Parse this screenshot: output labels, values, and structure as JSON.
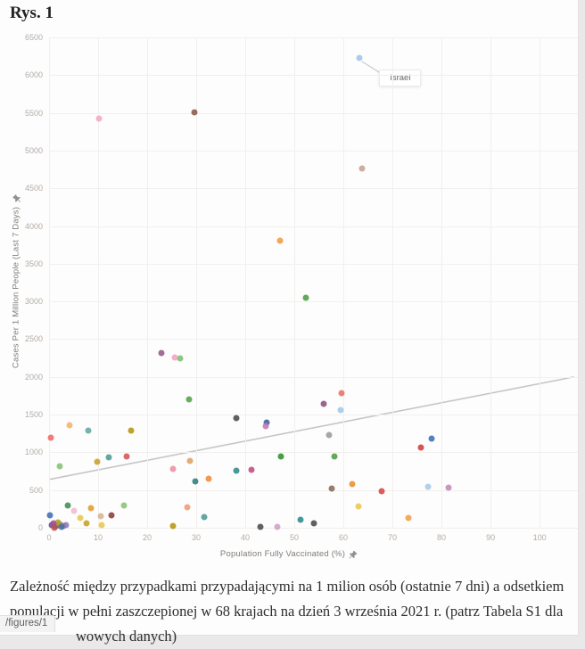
{
  "page": {
    "title": "Rys. 1",
    "status_chip": "/figures/1"
  },
  "caption": {
    "line1": "Zależność między przypadkami przypadającymi na 1 milion osób (ostatnie 7 dni) a odsetkiem",
    "line2": "populacji w pełni zaszczepionej w 68 krajach na dzień 3 września 2021 r. (patrz Tabela S1 dla",
    "line3": "wowych danych)"
  },
  "chart_data": {
    "type": "scatter",
    "title": "",
    "xlabel": "Population Fully Vaccinated (%)",
    "ylabel": "Cases Per 1 Million People (Last 7 Days)",
    "xlim": [
      0,
      107.8
    ],
    "ylim": [
      0,
      6500
    ],
    "x_ticks": [
      0,
      10,
      20,
      30,
      40,
      50,
      60,
      70,
      80,
      90,
      100
    ],
    "y_ticks": [
      0,
      500,
      1000,
      1500,
      2000,
      2500,
      3000,
      3500,
      4000,
      4500,
      5000,
      5500,
      6000,
      6500
    ],
    "grid": true,
    "trendline": {
      "x1": 0,
      "y1": 640,
      "x2": 107,
      "y2": 2000,
      "color": "#c6c6c6"
    },
    "annotation": {
      "label": "Israel",
      "point": {
        "x": 63.2,
        "y": 6230
      },
      "box": {
        "x": 67.3,
        "y": 6080
      }
    },
    "points": [
      {
        "x": 63.2,
        "y": 6230,
        "c": "#9fc5e8",
        "name": "Israel"
      },
      {
        "x": 10.2,
        "y": 5420,
        "c": "#f1a7c7"
      },
      {
        "x": 29.6,
        "y": 5510,
        "c": "#8a5a44"
      },
      {
        "x": 63.8,
        "y": 4760,
        "c": "#c9a092"
      },
      {
        "x": 47.0,
        "y": 3800,
        "c": "#f09b42"
      },
      {
        "x": 52.4,
        "y": 3050,
        "c": "#4c9e44"
      },
      {
        "x": 22.9,
        "y": 2320,
        "c": "#955a87"
      },
      {
        "x": 25.7,
        "y": 2260,
        "c": "#f2a3c0"
      },
      {
        "x": 26.8,
        "y": 2250,
        "c": "#7cc06c"
      },
      {
        "x": 59.6,
        "y": 1790,
        "c": "#ec7063"
      },
      {
        "x": 56.0,
        "y": 1640,
        "c": "#8e4f80"
      },
      {
        "x": 59.4,
        "y": 1565,
        "c": "#9ec9ea"
      },
      {
        "x": 28.5,
        "y": 1700,
        "c": "#56a14a"
      },
      {
        "x": 38.2,
        "y": 1450,
        "c": "#4a4a4a"
      },
      {
        "x": 44.3,
        "y": 1400,
        "c": "#3e5f9e"
      },
      {
        "x": 44.1,
        "y": 1345,
        "c": "#c07ab0"
      },
      {
        "x": 4.2,
        "y": 1360,
        "c": "#f5b26b"
      },
      {
        "x": 0.4,
        "y": 1190,
        "c": "#ec6b66"
      },
      {
        "x": 8.0,
        "y": 1290,
        "c": "#62aaa2"
      },
      {
        "x": 16.7,
        "y": 1285,
        "c": "#b5950f"
      },
      {
        "x": 57.0,
        "y": 1230,
        "c": "#9b9b9b"
      },
      {
        "x": 78.0,
        "y": 1180,
        "c": "#3f6db4"
      },
      {
        "x": 75.8,
        "y": 1065,
        "c": "#d13c3c"
      },
      {
        "x": 12.2,
        "y": 935,
        "c": "#4f9a94"
      },
      {
        "x": 15.8,
        "y": 945,
        "c": "#d95252"
      },
      {
        "x": 28.7,
        "y": 890,
        "c": "#dda267"
      },
      {
        "x": 9.8,
        "y": 870,
        "c": "#c7a02a"
      },
      {
        "x": 2.2,
        "y": 815,
        "c": "#83c178"
      },
      {
        "x": 47.3,
        "y": 945,
        "c": "#2f8f2f"
      },
      {
        "x": 58.2,
        "y": 950,
        "c": "#4c9e44"
      },
      {
        "x": 25.3,
        "y": 780,
        "c": "#ea8fa0"
      },
      {
        "x": 38.2,
        "y": 760,
        "c": "#2e8b8b"
      },
      {
        "x": 41.3,
        "y": 770,
        "c": "#c24a7e"
      },
      {
        "x": 77.2,
        "y": 545,
        "c": "#a5cae8"
      },
      {
        "x": 81.4,
        "y": 535,
        "c": "#c289ba"
      },
      {
        "x": 57.6,
        "y": 520,
        "c": "#8a6a5a"
      },
      {
        "x": 61.8,
        "y": 575,
        "c": "#e8912d"
      },
      {
        "x": 67.8,
        "y": 485,
        "c": "#d94444"
      },
      {
        "x": 63.1,
        "y": 285,
        "c": "#e6c84d"
      },
      {
        "x": 73.3,
        "y": 135,
        "c": "#f0a144"
      },
      {
        "x": 29.8,
        "y": 620,
        "c": "#2e7d7d"
      },
      {
        "x": 32.5,
        "y": 645,
        "c": "#ef8a3a"
      },
      {
        "x": 3.8,
        "y": 295,
        "c": "#3f8e50"
      },
      {
        "x": 0.2,
        "y": 170,
        "c": "#3f6db4"
      },
      {
        "x": 5.1,
        "y": 230,
        "c": "#f3bacd"
      },
      {
        "x": 8.5,
        "y": 265,
        "c": "#e09d2c"
      },
      {
        "x": 6.4,
        "y": 125,
        "c": "#e6c84d"
      },
      {
        "x": 7.6,
        "y": 55,
        "c": "#c7a02a"
      },
      {
        "x": 10.5,
        "y": 150,
        "c": "#d8b48c"
      },
      {
        "x": 12.7,
        "y": 160,
        "c": "#8e3b3b"
      },
      {
        "x": 15.3,
        "y": 295,
        "c": "#8cc06e"
      },
      {
        "x": 10.7,
        "y": 35,
        "c": "#e6c84d"
      },
      {
        "x": 25.3,
        "y": 25,
        "c": "#b5950f"
      },
      {
        "x": 28.2,
        "y": 270,
        "c": "#ef9a77"
      },
      {
        "x": 31.6,
        "y": 145,
        "c": "#4f9a94"
      },
      {
        "x": 51.3,
        "y": 110,
        "c": "#2e8b8b"
      },
      {
        "x": 54.0,
        "y": 55,
        "c": "#4a4a4a"
      },
      {
        "x": 43.1,
        "y": 15,
        "c": "#4a4a4a"
      },
      {
        "x": 46.5,
        "y": 12,
        "c": "#cf9fc6"
      },
      {
        "x": 0.6,
        "y": 30,
        "c": "#6a4c93"
      },
      {
        "x": 1.4,
        "y": 18,
        "c": "#41618f"
      },
      {
        "x": 2.1,
        "y": 48,
        "c": "#9a8a2e"
      },
      {
        "x": 2.9,
        "y": 22,
        "c": "#7d6bab"
      },
      {
        "x": 1.9,
        "y": 75,
        "c": "#b0a030"
      },
      {
        "x": 3.4,
        "y": 40,
        "c": "#8d7bb5"
      },
      {
        "x": 0.9,
        "y": 60,
        "c": "#a05195"
      },
      {
        "x": 2.6,
        "y": 8,
        "c": "#4a6fa5"
      },
      {
        "x": 1.1,
        "y": 5,
        "c": "#c0504d"
      }
    ]
  }
}
